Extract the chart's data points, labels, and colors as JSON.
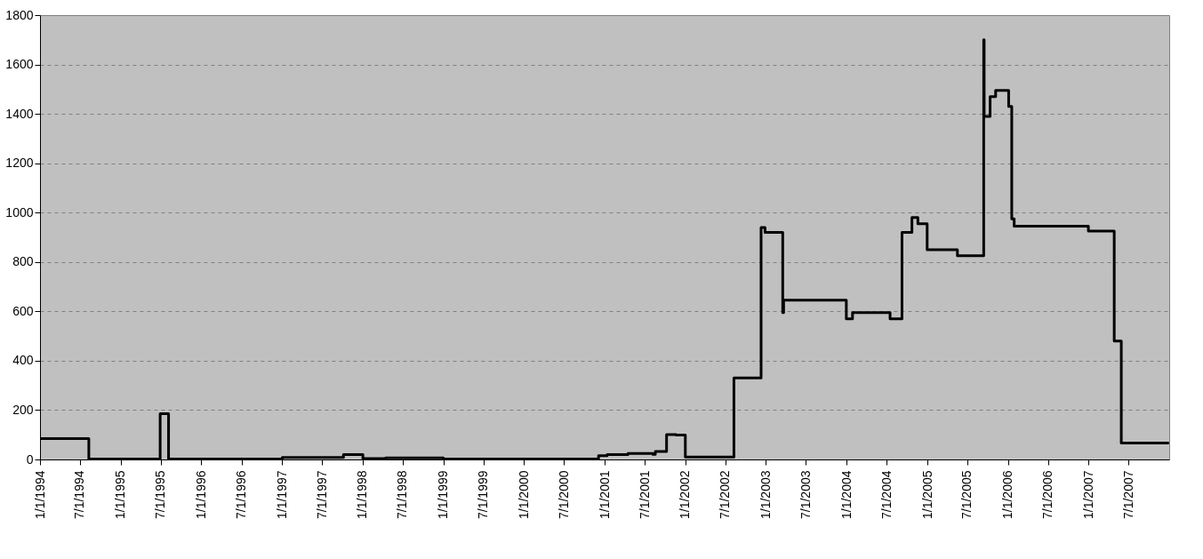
{
  "chart_data": {
    "type": "step",
    "x": [
      "1994-01-01",
      "1994-08-10",
      "1995-06-29",
      "1995-08-06",
      "1997-01-02",
      "1997-10-06",
      "1998-01-02",
      "1998-04-15",
      "1999-01-01",
      "2000-12-04",
      "2001-01-12",
      "2001-04-16",
      "2001-08-07",
      "2001-08-18",
      "2001-10-08",
      "2001-11-20",
      "2002-01-01",
      "2002-08-09",
      "2002-12-10",
      "2002-12-28",
      "2003-03-18",
      "2003-03-22",
      "2003-12-31",
      "2004-01-28",
      "2004-07-16",
      "2004-09-08",
      "2004-10-23",
      "2004-11-19",
      "2004-12-31",
      "2005-05-17",
      "2005-09-13",
      "2005-09-15",
      "2005-10-12",
      "2005-11-06",
      "2006-01-04",
      "2006-01-18",
      "2006-01-29",
      "2006-12-31",
      "2007-04-27",
      "2007-05-29",
      "2007-12-31"
    ],
    "series": [
      {
        "color": "#000000",
        "values": [
          85,
          2,
          185,
          2,
          8,
          20,
          4,
          6,
          2,
          15,
          20,
          24,
          21,
          32,
          101,
          99,
          10,
          330,
          940,
          920,
          595,
          645,
          570,
          595,
          570,
          920,
          980,
          955,
          850,
          825,
          1700,
          1390,
          1470,
          1495,
          1430,
          975,
          945,
          925,
          480,
          67,
          67
        ]
      }
    ],
    "xlim": [
      "1994-01-01",
      "2008-01-01"
    ],
    "xticks": [
      {
        "value": "1994-01-01",
        "label": "1/1/1994"
      },
      {
        "value": "1994-07-01",
        "label": "7/1/1994"
      },
      {
        "value": "1995-01-01",
        "label": "1/1/1995"
      },
      {
        "value": "1995-07-01",
        "label": "7/1/1995"
      },
      {
        "value": "1996-01-01",
        "label": "1/1/1996"
      },
      {
        "value": "1996-07-01",
        "label": "7/1/1996"
      },
      {
        "value": "1997-01-01",
        "label": "1/1/1997"
      },
      {
        "value": "1997-07-01",
        "label": "7/1/1997"
      },
      {
        "value": "1998-01-01",
        "label": "1/1/1998"
      },
      {
        "value": "1998-07-01",
        "label": "7/1/1998"
      },
      {
        "value": "1999-01-01",
        "label": "1/1/1999"
      },
      {
        "value": "1999-07-01",
        "label": "7/1/1999"
      },
      {
        "value": "2000-01-01",
        "label": "1/1/2000"
      },
      {
        "value": "2000-07-01",
        "label": "7/1/2000"
      },
      {
        "value": "2001-01-01",
        "label": "1/1/2001"
      },
      {
        "value": "2001-07-01",
        "label": "7/1/2001"
      },
      {
        "value": "2002-01-01",
        "label": "1/1/2002"
      },
      {
        "value": "2002-07-01",
        "label": "7/1/2002"
      },
      {
        "value": "2003-01-01",
        "label": "1/1/2003"
      },
      {
        "value": "2003-07-01",
        "label": "7/1/2003"
      },
      {
        "value": "2004-01-01",
        "label": "1/1/2004"
      },
      {
        "value": "2004-07-01",
        "label": "7/1/2004"
      },
      {
        "value": "2005-01-01",
        "label": "1/1/2005"
      },
      {
        "value": "2005-07-01",
        "label": "7/1/2005"
      },
      {
        "value": "2006-01-01",
        "label": "1/1/2006"
      },
      {
        "value": "2006-07-01",
        "label": "7/1/2006"
      },
      {
        "value": "2007-01-01",
        "label": "1/1/2007"
      },
      {
        "value": "2007-07-01",
        "label": "7/1/2007"
      }
    ],
    "ylim": [
      0,
      1800
    ],
    "yticks": [
      0,
      200,
      400,
      600,
      800,
      1000,
      1200,
      1400,
      1600,
      1800
    ],
    "grid": "y",
    "line_style": "solid",
    "marker": "none",
    "legend": false
  }
}
